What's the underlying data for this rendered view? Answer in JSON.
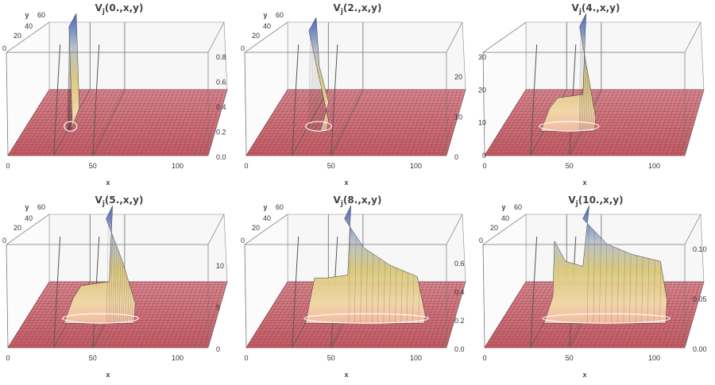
{
  "chart_data": [
    {
      "type": "surface3d",
      "title_prefix": "V",
      "title_sub": "j",
      "title_args": "(0.,x,y)",
      "xlabel": "x",
      "ylabel": "y",
      "x_ticks": [
        "0",
        "50",
        "100"
      ],
      "y_ticks": [
        "20",
        "40",
        "60"
      ],
      "z_ticks": [
        "0.0",
        "0.2",
        "0.4",
        "0.6",
        "0.8"
      ],
      "zlim": [
        0,
        0.8
      ],
      "peak": {
        "x": 27,
        "y": 58,
        "z": 0.8
      },
      "front_ridge": [
        [
          27,
          0.8
        ],
        [
          29,
          0.05
        ]
      ],
      "back_ridge": [
        [
          27,
          0.8
        ],
        [
          29,
          0.05
        ]
      ],
      "z_corner": "0",
      "zero_tick": "0"
    },
    {
      "type": "surface3d",
      "title_prefix": "V",
      "title_sub": "j",
      "title_args": "(2.,x,y)",
      "xlabel": "x",
      "ylabel": "y",
      "x_ticks": [
        "0",
        "50",
        "100"
      ],
      "y_ticks": [
        "20",
        "40",
        "60"
      ],
      "z_ticks": [
        "0",
        "10",
        "20"
      ],
      "zlim": [
        0,
        25
      ],
      "peak": {
        "x": 28,
        "y": 58,
        "z": 24
      },
      "front_ridge": [
        [
          28,
          24
        ],
        [
          40,
          2
        ]
      ],
      "back_ridge": [
        [
          28,
          24
        ],
        [
          30,
          12
        ],
        [
          36,
          3
        ]
      ],
      "z_corner": "0",
      "zero_tick": "0"
    },
    {
      "type": "surface3d",
      "title_prefix": "V",
      "title_sub": "j",
      "title_args": "(4.,x,y)",
      "xlabel": "x",
      "ylabel": "y",
      "x_ticks": [
        "0",
        "50",
        "100"
      ],
      "y_ticks": [],
      "z_ticks": [
        "0",
        "10",
        "20",
        "30"
      ],
      "zlim": [
        0,
        30
      ],
      "peak": {
        "x": 48,
        "y": 58,
        "z": 30
      },
      "front_ridge": [
        [
          48,
          30
        ],
        [
          58,
          3
        ]
      ],
      "back_ridge": [
        [
          48,
          30
        ],
        [
          46,
          6
        ],
        [
          30,
          5
        ],
        [
          25,
          2
        ]
      ],
      "z_corner": "",
      "zero_tick": "0"
    },
    {
      "type": "surface3d",
      "title_prefix": "V",
      "title_sub": "j",
      "title_args": "(5.,x,y)",
      "xlabel": "x",
      "ylabel": "y",
      "x_ticks": [
        "0",
        "50",
        "100"
      ],
      "y_ticks": [
        "20",
        "40",
        "60"
      ],
      "z_ticks": [
        "0",
        "5",
        "10"
      ],
      "zlim": [
        0,
        12
      ],
      "peak": {
        "x": 50,
        "y": 58,
        "z": 12
      },
      "front_ridge": [
        [
          50,
          12
        ],
        [
          60,
          7
        ],
        [
          68,
          2
        ]
      ],
      "back_ridge": [
        [
          50,
          12
        ],
        [
          48,
          3
        ],
        [
          30,
          2.5
        ],
        [
          25,
          1
        ]
      ],
      "z_corner": "0",
      "zero_tick": "0"
    },
    {
      "type": "surface3d",
      "title_prefix": "V",
      "title_sub": "j",
      "title_args": "(8.,x,y)",
      "xlabel": "x",
      "ylabel": "y",
      "x_ticks": [
        "0",
        "50",
        "100"
      ],
      "y_ticks": [
        "20",
        "40",
        "60"
      ],
      "z_ticks": [
        "0.0",
        "0.2",
        "0.4",
        "0.6"
      ],
      "zlim": [
        0,
        0.7
      ],
      "peak": {
        "x": 50,
        "y": 58,
        "z": 0.7
      },
      "front_ridge": [
        [
          50,
          0.7
        ],
        [
          62,
          0.5
        ],
        [
          78,
          0.38
        ],
        [
          95,
          0.3
        ],
        [
          100,
          0.03
        ]
      ],
      "back_ridge": [
        [
          50,
          0.7
        ],
        [
          48,
          0.22
        ],
        [
          35,
          0.2
        ],
        [
          27,
          0.2
        ]
      ],
      "z_corner": "0",
      "zero_tick": "0"
    },
    {
      "type": "surface3d",
      "title_prefix": "V",
      "title_sub": "j",
      "title_args": "(10.,x,y)",
      "xlabel": "x",
      "ylabel": "y",
      "x_ticks": [
        "0",
        "50",
        "100"
      ],
      "y_ticks": [
        "20",
        "40",
        "60"
      ],
      "z_ticks": [
        "0.00",
        "0.05",
        "0.10"
      ],
      "zlim": [
        0,
        0.1
      ],
      "peak": {
        "x": 50,
        "y": 58,
        "z": 0.1
      },
      "front_ridge": [
        [
          50,
          0.1
        ],
        [
          65,
          0.075
        ],
        [
          80,
          0.065
        ],
        [
          98,
          0.058
        ],
        [
          102,
          0.02
        ]
      ],
      "back_ridge": [
        [
          50,
          0.1
        ],
        [
          46,
          0.04
        ],
        [
          35,
          0.045
        ],
        [
          28,
          0.065
        ],
        [
          27,
          0.01
        ]
      ],
      "z_corner": "0",
      "zero_tick": "0"
    }
  ]
}
